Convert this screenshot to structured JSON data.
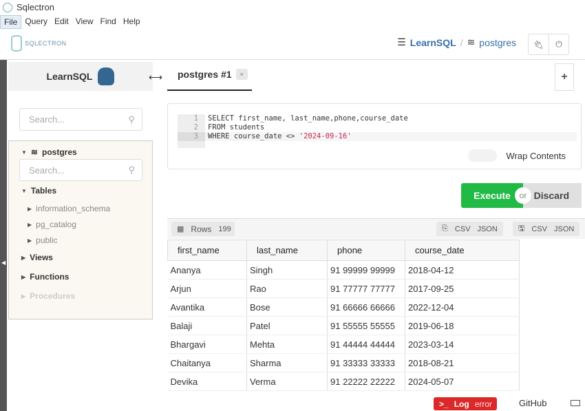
{
  "window": {
    "title": "Sqlectron"
  },
  "menu": [
    "File",
    "Query",
    "Edit",
    "View",
    "Find",
    "Help"
  ],
  "header": {
    "logo": "SQLECTRON",
    "server": "LearnSQL",
    "separator": "/",
    "database": "postgres"
  },
  "sidebar": {
    "title": "LearnSQL",
    "search_placeholder": "Search...",
    "db": "postgres",
    "db_search_placeholder": "Search...",
    "tables": "Tables",
    "schemas": [
      "information_schema",
      "pg_catalog",
      "public"
    ],
    "views": "Views",
    "functions": "Functions",
    "procedures": "Procedures"
  },
  "tab": {
    "label": "postgres #1",
    "close": "×",
    "add": "+"
  },
  "editor": {
    "lines": [
      {
        "n": "1",
        "code": "SELECT first_name, last_name,phone,course_date"
      },
      {
        "n": "2",
        "code": "FROM students"
      },
      {
        "n": "3",
        "code": "WHERE course_date <> ",
        "str": "'2024-09-16'"
      }
    ],
    "wrap_label": "Wrap Contents",
    "wrap_on": false
  },
  "actions": {
    "execute": "Execute",
    "or": "or",
    "discard": "Discard"
  },
  "results": {
    "rows_label": "Rows",
    "rows_count": "199",
    "copy_csv": "CSV",
    "copy_json": "JSON",
    "save_csv": "CSV",
    "save_json": "JSON",
    "columns": [
      "first_name",
      "last_name",
      "phone",
      "course_date"
    ],
    "rows": [
      [
        "Ananya",
        "Singh",
        "91 99999 99999",
        "2018-04-12"
      ],
      [
        "Arjun",
        "Rao",
        "91 77777 77777",
        "2017-09-25"
      ],
      [
        "Avantika",
        "Bose",
        "91 66666 66666",
        "2022-12-04"
      ],
      [
        "Balaji",
        "Patel",
        "91 55555 55555",
        "2019-06-18"
      ],
      [
        "Bhargavi",
        "Mehta",
        "91 44444 44444",
        "2023-03-14"
      ],
      [
        "Chaitanya",
        "Sharma",
        "91 33333 33333",
        "2018-08-21"
      ],
      [
        "Devika",
        "Verma",
        "91 22222 22222",
        "2024-05-07"
      ]
    ]
  },
  "footer": {
    "log": "Log",
    "log_status": "error",
    "github": "GitHub"
  },
  "colors": {
    "execute": "#21ba45",
    "log": "#db2828",
    "link": "#3a6fa8"
  }
}
